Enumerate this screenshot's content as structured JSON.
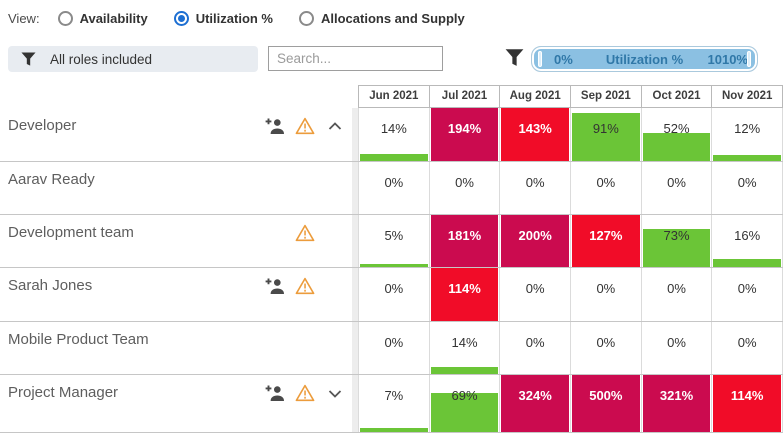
{
  "view_bar": {
    "label": "View:",
    "options": [
      {
        "label": "Availability",
        "selected": false
      },
      {
        "label": "Utilization %",
        "selected": true
      },
      {
        "label": "Allocations and Supply",
        "selected": false
      }
    ]
  },
  "filter_bar": {
    "roles_filter": "All roles included",
    "search_placeholder": "Search...",
    "range_slider": {
      "min_label": "0%",
      "title": "Utilization %",
      "max_label": "1010%"
    }
  },
  "grid": {
    "months": [
      "Jun 2021",
      "Jul 2021",
      "Aug 2021",
      "Sep 2021",
      "Oct 2021",
      "Nov 2021"
    ],
    "rows": [
      {
        "name": "Developer",
        "icons": [
          "add-person",
          "warning"
        ],
        "chevron": "up",
        "values": [
          14,
          194,
          143,
          91,
          52,
          12
        ]
      },
      {
        "name": "Aarav Ready",
        "icons": [],
        "chevron": null,
        "values": [
          0,
          0,
          0,
          0,
          0,
          0
        ]
      },
      {
        "name": "Development team",
        "icons": [
          "warning"
        ],
        "chevron": null,
        "values": [
          5,
          181,
          200,
          127,
          73,
          16
        ]
      },
      {
        "name": "Sarah Jones",
        "icons": [
          "add-person",
          "warning"
        ],
        "chevron": null,
        "values": [
          0,
          114,
          0,
          0,
          0,
          0
        ]
      },
      {
        "name": "Mobile Product Team",
        "icons": [],
        "chevron": null,
        "values": [
          0,
          14,
          0,
          0,
          0,
          0
        ]
      },
      {
        "name": "Project Manager",
        "icons": [
          "add-person",
          "warning"
        ],
        "chevron": "down",
        "values": [
          7,
          69,
          324,
          500,
          321,
          114
        ]
      }
    ],
    "value_suffix": "%",
    "colors": {
      "green": "#6bc537",
      "red": "#f10c28",
      "crimson": "#cb0b4f",
      "warning_orange": "#ec9c3c",
      "radio_blue": "#1d6fd2"
    },
    "thresholds": {
      "red_min": 100,
      "crimson_min": 150
    }
  }
}
